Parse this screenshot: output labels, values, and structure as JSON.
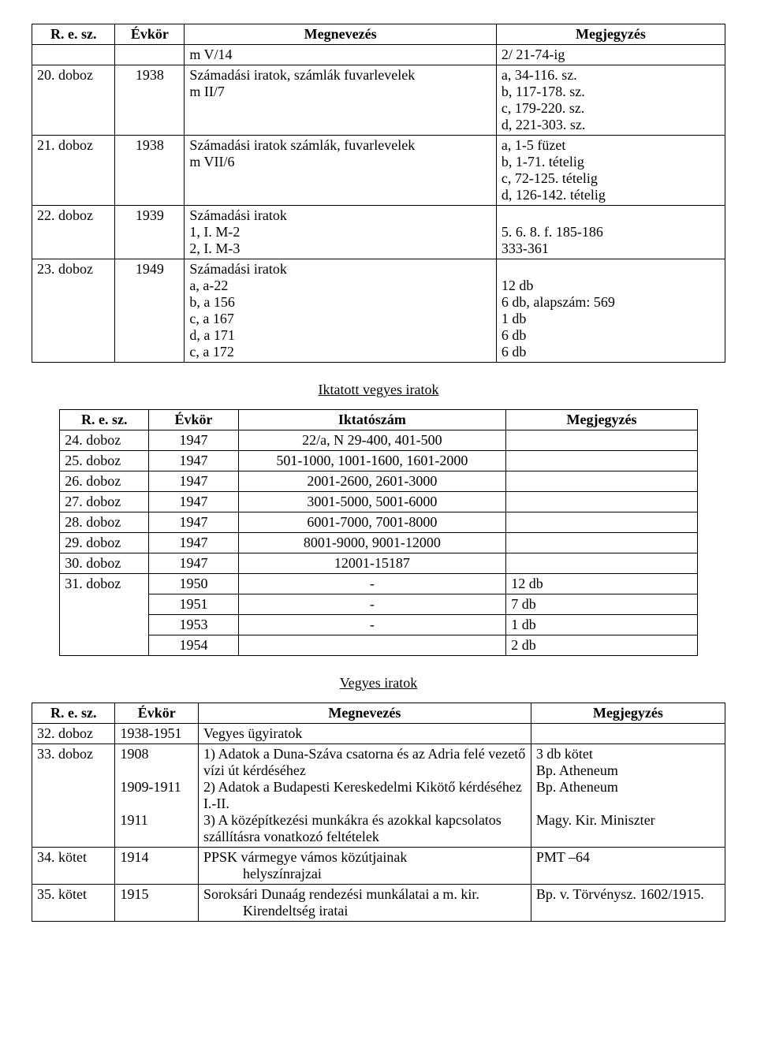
{
  "table1": {
    "headers": [
      "R. e. sz.",
      "Évkör",
      "Megnevezés",
      "Megjegyzés"
    ],
    "rows": [
      {
        "c1": "",
        "c2": "",
        "c3": "m V/14",
        "c4": "2/ 21-74-ig"
      },
      {
        "c1": "20. doboz",
        "c2": "1938",
        "c3": "Számadási iratok, számlák fuvarlevelek\nm II/7",
        "c4": "a, 34-116. sz.\nb, 117-178. sz.\nc, 179-220. sz.\nd, 221-303. sz."
      },
      {
        "c1": "21. doboz",
        "c2": "1938",
        "c3": "Számadási iratok számlák, fuvarlevelek\nm VII/6",
        "c4": "a, 1-5 füzet\nb, 1-71. tételig\nc, 72-125. tételig\nd, 126-142. tételig"
      },
      {
        "c1": "22. doboz",
        "c2": "1939",
        "c3": "Számadási iratok\n1, I. M-2\n2, I. M-3",
        "c4": "\n5. 6. 8. f. 185-186\n333-361"
      },
      {
        "c1": "23. doboz",
        "c2": "1949",
        "c3": "Számadási iratok\na, a-22\nb, a 156\nc, a 167\nd, a 171\nc, a 172",
        "c4": "\n12 db\n6 db, alapszám: 569\n1 db\n6 db\n6 db"
      }
    ]
  },
  "section2_title": "Iktatott vegyes iratok",
  "table2": {
    "headers": [
      "R. e. sz.",
      "Évkör",
      "Iktatószám",
      "Megjegyzés"
    ],
    "rows": [
      {
        "c1": "24. doboz",
        "c2": "1947",
        "c3": "22/a, N 29-400, 401-500",
        "c4": ""
      },
      {
        "c1": "25. doboz",
        "c2": "1947",
        "c3": "501-1000, 1001-1600, 1601-2000",
        "c4": ""
      },
      {
        "c1": "26. doboz",
        "c2": "1947",
        "c3": "2001-2600, 2601-3000",
        "c4": ""
      },
      {
        "c1": "27. doboz",
        "c2": "1947",
        "c3": "3001-5000, 5001-6000",
        "c4": ""
      },
      {
        "c1": "28. doboz",
        "c2": "1947",
        "c3": "6001-7000, 7001-8000",
        "c4": ""
      },
      {
        "c1": "29. doboz",
        "c2": "1947",
        "c3": "8001-9000, 9001-12000",
        "c4": ""
      },
      {
        "c1": "30. doboz",
        "c2": "1947",
        "c3": "12001-15187",
        "c4": ""
      },
      {
        "c1": "31. doboz",
        "c2": "1950",
        "c3": "-",
        "c4": "12 db",
        "no_bottom": true
      },
      {
        "c1": "",
        "c2": "1951",
        "c3": "-",
        "c4": "7 db",
        "no_top": true,
        "no_bottom": true
      },
      {
        "c1": "",
        "c2": "1953",
        "c3": "-",
        "c4": "1 db",
        "no_top": true,
        "no_bottom": true
      },
      {
        "c1": "",
        "c2": "1954",
        "c3": "",
        "c4": "2 db",
        "no_top": true
      }
    ]
  },
  "section3_title": "Vegyes iratok",
  "table3": {
    "headers": [
      "R. e. sz.",
      "Évkör",
      "Megnevezés",
      "Megjegyzés"
    ],
    "rows": [
      {
        "c1": "32. doboz",
        "c2": "1938-1951",
        "c3": "Vegyes ügyiratok",
        "c4": ""
      },
      {
        "c1": "33. doboz",
        "c2": "1908\n\n1909-1911\n\n1911",
        "c3": "1) Adatok a Duna-Száva csatorna és az Adria felé vezető vízi út kérdéséhez\n2) Adatok a Budapesti Kereskedelmi Kikötő kérdéséhez I.-II.\n3) A középítkezési munkákra és azokkal kapcsolatos szállításra vonatkozó feltételek",
        "c4": "3 db kötet\nBp. Atheneum\nBp. Atheneum\n\nMagy. Kir. Miniszter"
      },
      {
        "c1": "34. kötet",
        "c2": "1914",
        "c3": "PPSK vármegye vámos közútjainak",
        "c3_indent": "helyszínrajzai",
        "c4": "PMT –64"
      },
      {
        "c1": "35. kötet",
        "c2": "1915",
        "c3": "Soroksári Dunaág rendezési munkálatai a m. kir.",
        "c3_indent": "Kirendeltség iratai",
        "c4": "Bp. v. Törvénysz. 1602/1915."
      }
    ]
  }
}
